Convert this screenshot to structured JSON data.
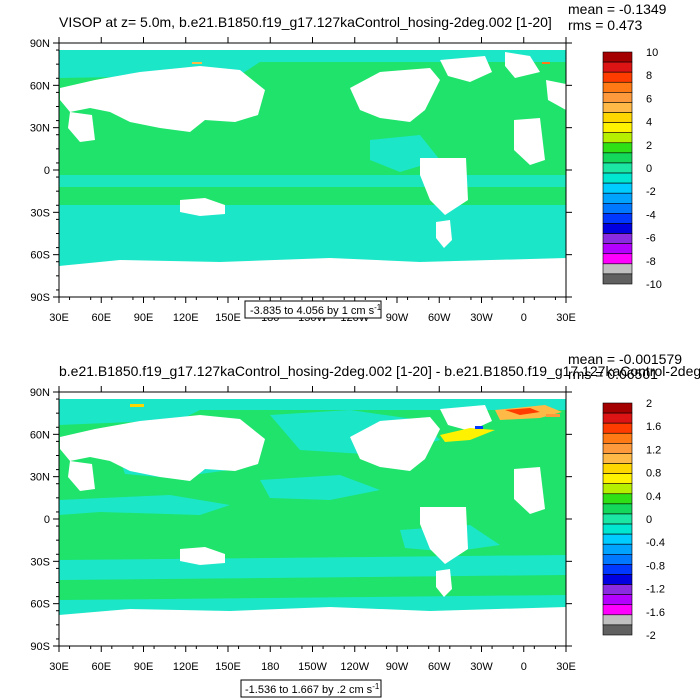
{
  "panel1": {
    "title": "VISOP at z=   5.0m, b.e21.B1850.f19_g17.127kaControl_hosing-2deg.002 [1-20]",
    "stat_mean": "mean = -0.1349",
    "stat_rms": "rms = 0.473",
    "range_note": "-3.835 to 4.056 by 1 cm s",
    "range_unit_sup": "-1",
    "colorbar": {
      "labels": [
        "10",
        "8",
        "6",
        "4",
        "2",
        "0",
        "-2",
        "-4",
        "-6",
        "-8",
        "-10"
      ],
      "colors": [
        "#a50000",
        "#dc1414",
        "#ff3c00",
        "#ff7a14",
        "#ff9a3c",
        "#ffb947",
        "#ffd700",
        "#fff200",
        "#b6f000",
        "#2fe017",
        "#13d85b",
        "#1ce6a4",
        "#00e6d0",
        "#00ccff",
        "#00a4ff",
        "#0078ff",
        "#0038ff",
        "#0000e0",
        "#8a2be2",
        "#b400ff",
        "#ff00ff",
        "#c0c0c0",
        "#606060"
      ]
    }
  },
  "panel2": {
    "title": "b.e21.B1850.f19_g17.127kaControl_hosing-2deg.002 [1-20] - b.e21.B1850.f19_g17.127kaControl-2deg.",
    "stat_mean": "mean = -0.001579",
    "stat_rms": "rms = 0.06501",
    "range_note": "-1.536 to 1.667 by .2 cm s",
    "range_unit_sup": "-1",
    "colorbar": {
      "labels": [
        "2",
        "1.6",
        "1.2",
        "0.8",
        "0.4",
        "0",
        "-0.4",
        "-0.8",
        "-1.2",
        "-1.6",
        "-2"
      ],
      "colors": [
        "#a50000",
        "#dc1414",
        "#ff3c00",
        "#ff7a14",
        "#ff9a3c",
        "#ffb947",
        "#ffd700",
        "#fff200",
        "#b6f000",
        "#2fe017",
        "#13d85b",
        "#1ce6a4",
        "#00e6d0",
        "#00ccff",
        "#00a4ff",
        "#0078ff",
        "#0038ff",
        "#0000e0",
        "#8a2be2",
        "#b400ff",
        "#ff00ff",
        "#c0c0c0",
        "#606060"
      ]
    }
  },
  "axes": {
    "lat_labels": [
      "90N",
      "60N",
      "30N",
      "0",
      "30S",
      "60S",
      "90S"
    ],
    "lon_labels": [
      "30E",
      "60E",
      "90E",
      "120E",
      "150E",
      "180",
      "150W",
      "120W",
      "90W",
      "60W",
      "30W",
      "0",
      "30E"
    ]
  },
  "colors": {
    "ocean_main": "#1fe36b",
    "ocean_cyan": "#1ce6c8",
    "land": "#ffffff"
  }
}
